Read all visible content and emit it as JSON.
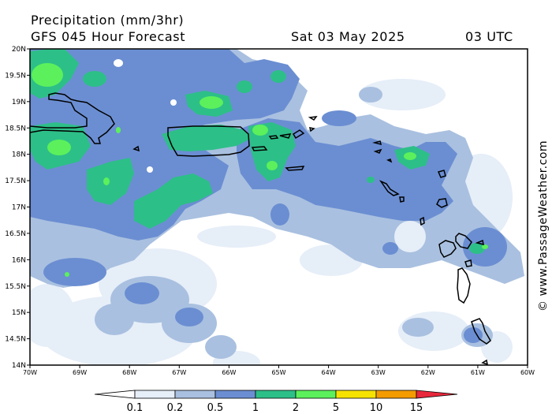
{
  "header": {
    "title": "Precipitation (mm/3hr)",
    "subtitle": "GFS 045 Hour Forecast",
    "date": "Sat 03 May 2025",
    "time": "03 UTC"
  },
  "credit": "© www.PassageWeather.com",
  "map": {
    "lon_range": [
      -70,
      -60
    ],
    "lat_range": [
      14,
      20
    ],
    "lat_labels": [
      "20N",
      "19.5N",
      "19N",
      "18.5N",
      "18N",
      "17.5N",
      "17N",
      "16.5N",
      "16N",
      "15.5N",
      "15N",
      "14.5N",
      "14N"
    ],
    "lon_labels": [
      "70W",
      "69W",
      "68W",
      "67W",
      "66W",
      "65W",
      "64W",
      "63W",
      "62W",
      "61W",
      "60W"
    ]
  },
  "legend": {
    "labels": [
      "0.1",
      "0.2",
      "0.5",
      "1",
      "2",
      "5",
      "10",
      "15"
    ],
    "colors": [
      "#ffffff",
      "#e6eef8",
      "#a9c0e0",
      "#6b8ed2",
      "#2dbf88",
      "#5cf05c",
      "#f6e200",
      "#f49b00",
      "#e8283c"
    ]
  }
}
